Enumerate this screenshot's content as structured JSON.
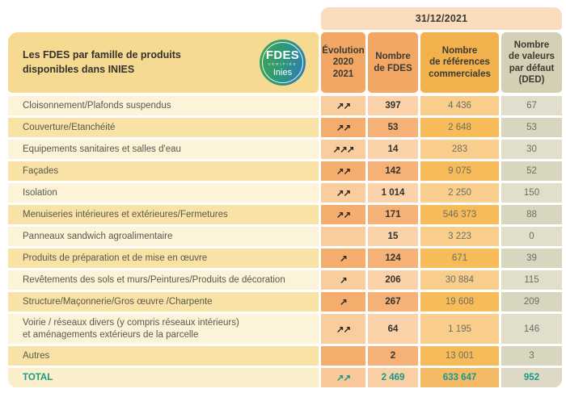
{
  "table": {
    "date_header": "31/12/2021",
    "title": "Les FDES par famille de produits\ndisponibles dans INIES",
    "logo": {
      "line1": "FDES",
      "line2": "VÉRIFIÉE",
      "line3": "Inies"
    },
    "columns": {
      "evolution": "Évolution\n2020\n2021",
      "fdes": "Nombre\nde FDES",
      "refs": "Nombre\nde références\ncommerciales",
      "ded": "Nombre\nde valeurs\npar défaut\n(DED)"
    },
    "rows": [
      {
        "label": "Cloisonnement/Plafonds suspendus",
        "evolution": "↗↗",
        "fdes": "397",
        "refs": "4 436",
        "ded": "67"
      },
      {
        "label": "Couverture/Etanchéité",
        "evolution": "↗↗",
        "fdes": "53",
        "refs": "2 648",
        "ded": "53"
      },
      {
        "label": "Equipements sanitaires et salles d'eau",
        "evolution": "↗↗↗",
        "fdes": "14",
        "refs": "283",
        "ded": "30"
      },
      {
        "label": "Façades",
        "evolution": "↗↗",
        "fdes": "142",
        "refs": "9 075",
        "ded": "52"
      },
      {
        "label": "Isolation",
        "evolution": "↗↗",
        "fdes": "1 014",
        "refs": "2 250",
        "ded": "150"
      },
      {
        "label": "Menuiseries intérieures et extérieures/Fermetures",
        "evolution": "↗↗",
        "fdes": "171",
        "refs": "546 373",
        "ded": "88"
      },
      {
        "label": "Panneaux sandwich agroalimentaire",
        "evolution": "",
        "fdes": "15",
        "refs": "3 223",
        "ded": "0"
      },
      {
        "label": "Produits de préparation et de mise en œuvre",
        "evolution": "↗",
        "fdes": "124",
        "refs": "671",
        "ded": "39"
      },
      {
        "label": "Revêtements des sols et murs/Peintures/Produits de décoration",
        "evolution": "↗",
        "fdes": "206",
        "refs": "30 884",
        "ded": "115"
      },
      {
        "label": "Structure/Maçonnerie/Gros œuvre /Charpente",
        "evolution": "↗",
        "fdes": "267",
        "refs": "19 608",
        "ded": "209"
      },
      {
        "label": "Voirie / réseaux divers (y compris réseaux intérieurs)\net aménagements extérieurs de la parcelle",
        "evolution": "↗↗",
        "fdes": "64",
        "refs": "1 195",
        "ded": "146"
      },
      {
        "label": "Autres",
        "evolution": "",
        "fdes": "2",
        "refs": "13 001",
        "ded": "3"
      }
    ],
    "total": {
      "label": "TOTAL",
      "evolution": "↗↗",
      "fdes": "2 469",
      "refs": "633 647",
      "ded": "952"
    },
    "colors": {
      "accent_teal": "#18988C",
      "header_orange": "#F2A765",
      "header_gold": "#F2B14C",
      "header_tan": "#D5D0B5",
      "band_peach": "#FBDCBC",
      "title_yellow": "#F7DA92",
      "logo_green": "#3FA254",
      "logo_blue": "#2B7CB9"
    }
  }
}
